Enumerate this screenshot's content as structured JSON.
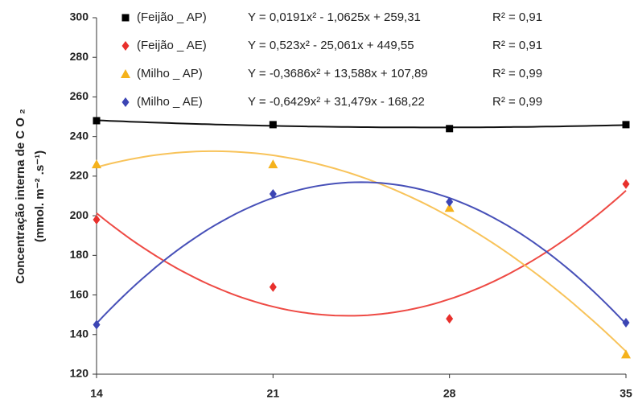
{
  "chart_data": {
    "type": "scatter",
    "ylabel": [
      "Concentração interna de C O ₂",
      "(mmol. m⁻² .s⁻¹)"
    ],
    "x": [
      14,
      21,
      28,
      35
    ],
    "xlim": [
      14,
      35
    ],
    "xticks": [
      14,
      21,
      28,
      35
    ],
    "ylim": [
      120,
      300
    ],
    "yticks": [
      120,
      140,
      160,
      180,
      200,
      220,
      240,
      260,
      280,
      300
    ],
    "trendline": "quadratic",
    "series": [
      {
        "name": "(Feijão _ AP)",
        "color": "#000000",
        "line_color": "#111111",
        "marker": "square",
        "equation": "Y =  0,0191x² - 1,0625x + 259,31",
        "r2": "R² = 0,91",
        "values": [
          248,
          246,
          244,
          246
        ]
      },
      {
        "name": "(Feijão _ AE)",
        "color": "#e8302c",
        "line_color": "#ee4a44",
        "marker": "diamond",
        "equation": "Y =  0,523x² - 25,061x + 449,55",
        "r2": "R² =  0,91",
        "values": [
          198,
          164,
          148,
          216
        ]
      },
      {
        "name": "(Milho _ AP)",
        "color": "#f5b21c",
        "line_color": "#f8c35a",
        "marker": "triangle",
        "equation": "Y =  -0,3686x² + 13,588x + 107,89",
        "r2": "R² = 0,99",
        "values": [
          226,
          226,
          204,
          130
        ]
      },
      {
        "name": "(Milho _ AE)",
        "color": "#3c45b4",
        "line_color": "#4750b8",
        "marker": "diamond",
        "equation": "Y =  -0,6429x² + 31,479x - 168,22",
        "r2": "R² = 0,99",
        "values": [
          145,
          211,
          207,
          146
        ]
      }
    ]
  }
}
